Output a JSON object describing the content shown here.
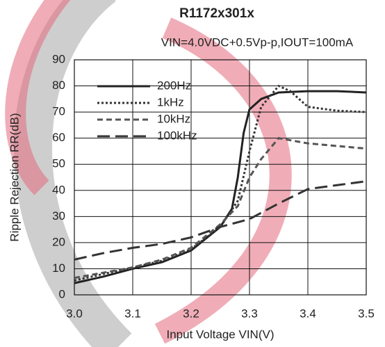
{
  "chart_data": {
    "type": "line",
    "title": "R1172x301x",
    "subtitle": "VIN=4.0VDC+0.5Vp-p,IOUT=100mA",
    "x_label": "Input Voltage VIN(V)",
    "y_label": "Ripple Rejection RR(dB)",
    "xlim": [
      3.0,
      3.5
    ],
    "xticks": [
      {
        "value": 3.0,
        "label": "3.0"
      },
      3.1,
      3.2,
      3.3,
      3.4,
      {
        "value": 3.5,
        "label": "3.5"
      }
    ],
    "ylim": [
      0,
      90
    ],
    "yticks": [
      0,
      10,
      20,
      30,
      40,
      50,
      60,
      70,
      80,
      90
    ],
    "grid": true,
    "legend": "upper-left",
    "series": [
      {
        "name": "200Hz",
        "color": "#222222",
        "dash": "solid",
        "x": [
          3.0,
          3.05,
          3.1,
          3.15,
          3.2,
          3.25,
          3.27,
          3.28,
          3.29,
          3.3,
          3.32,
          3.35,
          3.4,
          3.45,
          3.5
        ],
        "values": [
          4.5,
          7,
          10,
          12.5,
          17,
          26,
          33,
          45,
          62,
          71,
          75,
          77.5,
          78,
          78,
          77.5
        ]
      },
      {
        "name": "1kHz",
        "color": "#333333",
        "dash": "dotted",
        "x": [
          3.0,
          3.05,
          3.1,
          3.15,
          3.2,
          3.25,
          3.28,
          3.3,
          3.32,
          3.35,
          3.37,
          3.4,
          3.45,
          3.5
        ],
        "values": [
          5.5,
          8,
          10.5,
          13,
          17.5,
          26,
          36,
          55,
          72,
          80,
          78,
          72,
          70.5,
          70
        ]
      },
      {
        "name": "10kHz",
        "color": "#555555",
        "dash": "dashed",
        "x": [
          3.0,
          3.05,
          3.1,
          3.15,
          3.2,
          3.25,
          3.28,
          3.3,
          3.32,
          3.35,
          3.4,
          3.45,
          3.5
        ],
        "values": [
          6.5,
          8.5,
          10.5,
          13.5,
          18,
          27,
          34,
          45,
          52,
          60,
          58,
          57,
          56
        ]
      },
      {
        "name": "100kHz",
        "color": "#333333",
        "dash": "longdash",
        "x": [
          3.0,
          3.05,
          3.1,
          3.15,
          3.2,
          3.25,
          3.3,
          3.35,
          3.4,
          3.45,
          3.5
        ],
        "values": [
          13.5,
          16,
          18,
          19.5,
          22,
          26,
          29,
          35,
          40.5,
          42,
          43.5
        ]
      }
    ]
  }
}
